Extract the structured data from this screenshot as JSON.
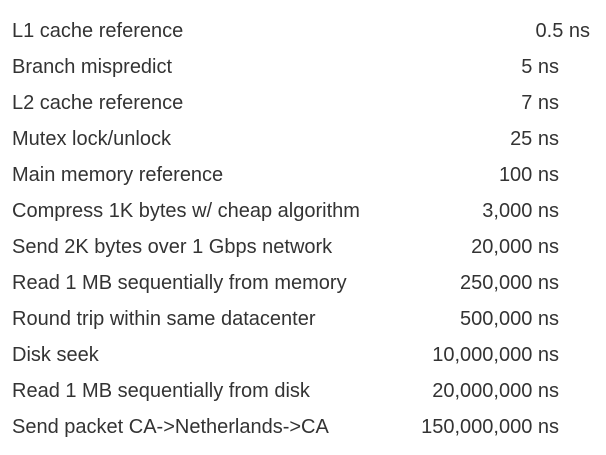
{
  "rows": [
    {
      "label": "L1 cache reference",
      "value": "0.5 ns"
    },
    {
      "label": "Branch mispredict",
      "value": "5 ns"
    },
    {
      "label": "L2 cache reference",
      "value": "7 ns"
    },
    {
      "label": "Mutex lock/unlock",
      "value": "25 ns"
    },
    {
      "label": "Main memory reference",
      "value": "100 ns"
    },
    {
      "label": "Compress 1K bytes w/ cheap algorithm",
      "value": "3,000 ns"
    },
    {
      "label": "Send 2K bytes over 1 Gbps network",
      "value": "20,000 ns"
    },
    {
      "label": "Read 1 MB sequentially from memory",
      "value": "250,000 ns"
    },
    {
      "label": "Round trip within same datacenter",
      "value": "500,000 ns"
    },
    {
      "label": "Disk seek",
      "value": "10,000,000 ns"
    },
    {
      "label": "Read 1 MB sequentially from disk",
      "value": "20,000,000 ns"
    },
    {
      "label": "Send packet CA->Netherlands->CA",
      "value": "150,000,000 ns"
    }
  ]
}
